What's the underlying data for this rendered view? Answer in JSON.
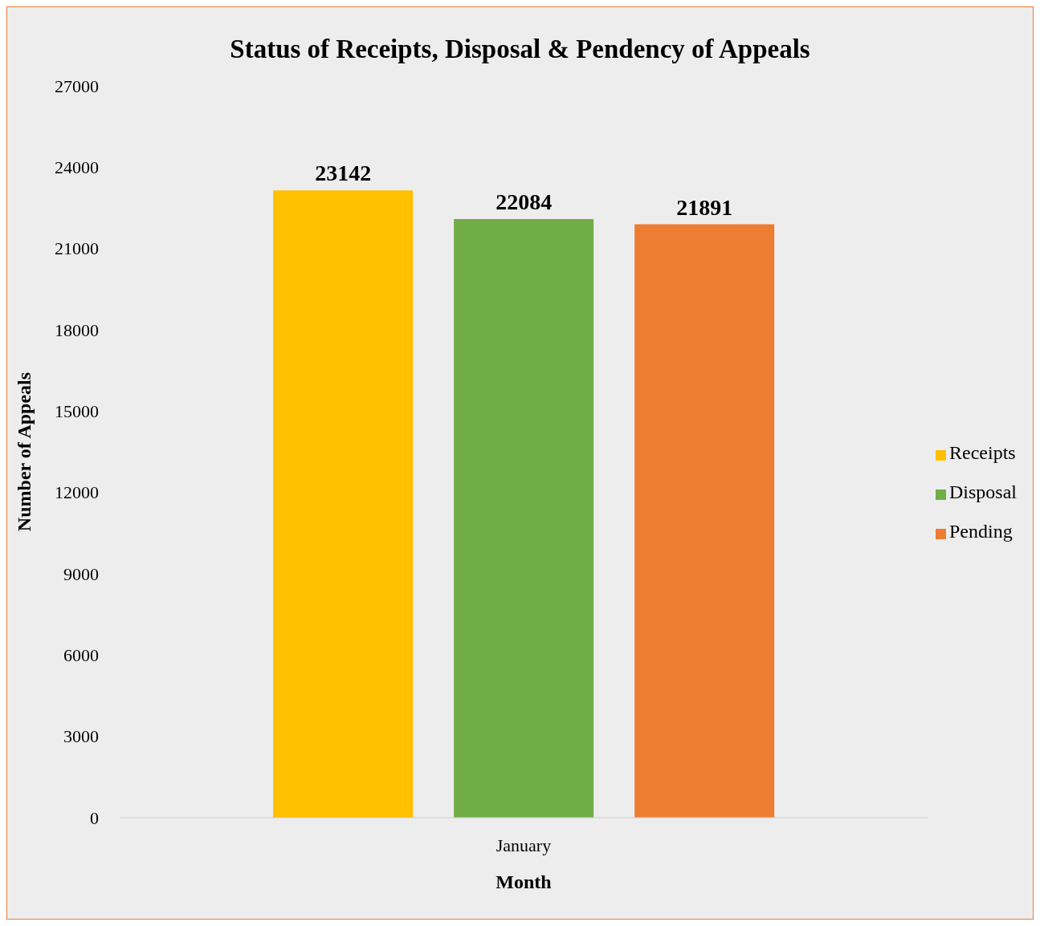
{
  "chart_data": {
    "type": "bar",
    "title": "Status of Receipts, Disposal & Pendency of Appeals",
    "xlabel": "Month",
    "ylabel": "Number of Appeals",
    "categories": [
      "January"
    ],
    "series": [
      {
        "name": "Receipts",
        "color": "#ffc000",
        "values": [
          23142
        ]
      },
      {
        "name": "Disposal",
        "color": "#70ad47",
        "values": [
          22084
        ]
      },
      {
        "name": "Pending",
        "color": "#ed7d31",
        "values": [
          21891
        ]
      }
    ],
    "ylim": [
      0,
      27000
    ],
    "yticks": [
      0,
      3000,
      6000,
      9000,
      12000,
      15000,
      18000,
      21000,
      24000,
      27000
    ],
    "data_labels": true,
    "legend": "right"
  }
}
